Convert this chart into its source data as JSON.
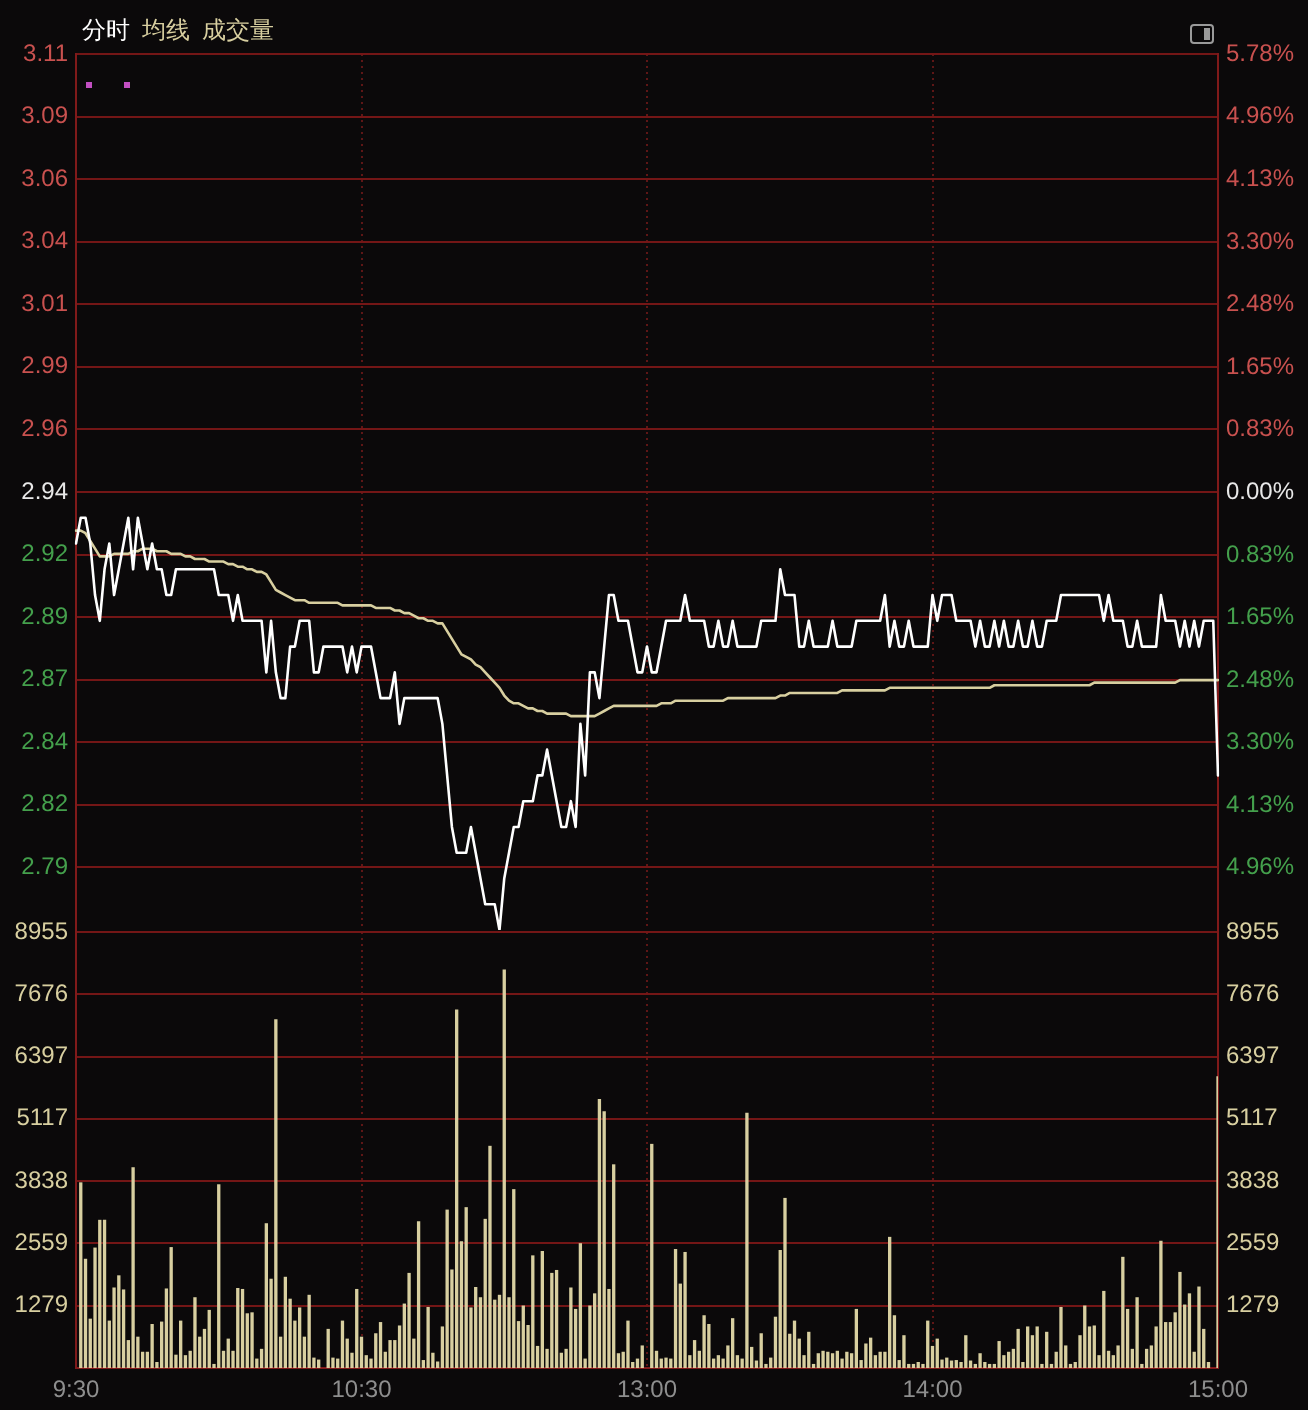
{
  "chart_data": [
    {
      "type": "line",
      "legend": "top left",
      "marker": "none",
      "grid": true,
      "categories": [
        null,
        null,
        null,
        null,
        null,
        null,
        null,
        null,
        null,
        null,
        null,
        null,
        null,
        null,
        null,
        null,
        null,
        null,
        null,
        null,
        null,
        null,
        null,
        null,
        null,
        null,
        null,
        null,
        null,
        null,
        null,
        null,
        null,
        null,
        null,
        null,
        null,
        null,
        null,
        null,
        null,
        null,
        null,
        null,
        null,
        null,
        null,
        null,
        null,
        null,
        null,
        null,
        null,
        null,
        null,
        null,
        null,
        null,
        null,
        null,
        null,
        null,
        null,
        null,
        null,
        null,
        null,
        null,
        null,
        null,
        null,
        null,
        null,
        null,
        null,
        null,
        null,
        null,
        null,
        null,
        null,
        null,
        null,
        null,
        null,
        null,
        null,
        null,
        null,
        null,
        null,
        null,
        null,
        null,
        null,
        null,
        null,
        null,
        null,
        null,
        null,
        null,
        null,
        null,
        null,
        null,
        null,
        null,
        null,
        null,
        null,
        null,
        null,
        null,
        null,
        null,
        null,
        null,
        null,
        null,
        null,
        null,
        null,
        null,
        null,
        null,
        null,
        null,
        null,
        null,
        null,
        null,
        null,
        null,
        null,
        null,
        null,
        null,
        null,
        null,
        null,
        null,
        null,
        null,
        null,
        null,
        null,
        null,
        null,
        null,
        null,
        null,
        null,
        null,
        null,
        null,
        null,
        null,
        null,
        null,
        null,
        null,
        null,
        null,
        null,
        null,
        null,
        null,
        null,
        null,
        null,
        null,
        null,
        null,
        null,
        null,
        null,
        null,
        null,
        null,
        null,
        null,
        null,
        null,
        null,
        null,
        null,
        null,
        null,
        null,
        null,
        null,
        null,
        null,
        null,
        null,
        null,
        null,
        null,
        null,
        null,
        null,
        null,
        null,
        null,
        null,
        null,
        null,
        null,
        null,
        null,
        null,
        null,
        null,
        null,
        null,
        null,
        null,
        null,
        null,
        null,
        null,
        null,
        null,
        null,
        null,
        null,
        null,
        null,
        null,
        null,
        null,
        null,
        null,
        null,
        null,
        null,
        null,
        null,
        null,
        null
      ],
      "ylim": [
        2.77,
        3.11
      ],
      "yticks": [
        3.11,
        {
          "value": 3.0857,
          "label": "3.09"
        },
        {
          "value": 3.0614,
          "label": "3.06"
        },
        {
          "value": 3.0371,
          "label": "3.04"
        },
        {
          "value": 3.0129,
          "label": "3.01"
        },
        {
          "value": 2.9886,
          "label": "2.99"
        },
        {
          "value": 2.9643,
          "label": "2.96"
        },
        2.94,
        {
          "value": 2.9157,
          "label": "2.92"
        },
        {
          "value": 2.8914,
          "label": "2.89"
        },
        {
          "value": 2.8671,
          "label": "2.87"
        },
        {
          "value": 2.8429,
          "label": "2.84"
        },
        {
          "value": 2.8186,
          "label": "2.82"
        },
        {
          "value": 2.7943,
          "label": "2.79"
        }
      ],
      "y2lim": [
        -5.78,
        5.78
      ],
      "y2ticks": [
        {
          "value": 5.78,
          "label": "5.78%"
        },
        {
          "value": 4.96,
          "label": "4.96%"
        },
        {
          "value": 4.13,
          "label": "4.13%"
        },
        {
          "value": 3.3,
          "label": "3.30%"
        },
        {
          "value": 2.48,
          "label": "2.48%"
        },
        {
          "value": 1.65,
          "label": "1.65%"
        },
        {
          "value": 0.83,
          "label": "0.83%"
        },
        {
          "value": 0,
          "label": "0.00%"
        },
        {
          "value": -0.83,
          "label": "0.83%"
        },
        {
          "value": -1.65,
          "label": "1.65%"
        },
        {
          "value": -2.48,
          "label": "2.48%"
        },
        {
          "value": -3.3,
          "label": "3.30%"
        },
        {
          "value": -4.13,
          "label": "4.13%"
        },
        {
          "value": -4.96,
          "label": "4.96%"
        }
      ],
      "series": [
        {
          "name": "分时",
          "color": "#ffffff",
          "values": [
            2.92,
            2.93,
            2.93,
            2.92,
            2.9,
            2.89,
            2.91,
            2.92,
            2.9,
            2.91,
            2.92,
            2.93,
            2.91,
            2.93,
            2.92,
            2.91,
            2.92,
            2.91,
            2.91,
            2.9,
            2.9,
            2.91,
            2.91,
            2.91,
            2.91,
            2.91,
            2.91,
            2.91,
            2.91,
            2.91,
            2.9,
            2.9,
            2.9,
            2.89,
            2.9,
            2.89,
            2.89,
            2.89,
            2.89,
            2.89,
            2.87,
            2.89,
            2.87,
            2.86,
            2.86,
            2.88,
            2.88,
            2.89,
            2.89,
            2.89,
            2.87,
            2.87,
            2.88,
            2.88,
            2.88,
            2.88,
            2.88,
            2.87,
            2.88,
            2.87,
            2.88,
            2.88,
            2.88,
            2.87,
            2.86,
            2.86,
            2.86,
            2.87,
            2.85,
            2.86,
            2.86,
            2.86,
            2.86,
            2.86,
            2.86,
            2.86,
            2.86,
            2.85,
            2.83,
            2.81,
            2.8,
            2.8,
            2.8,
            2.81,
            2.8,
            2.79,
            2.78,
            2.78,
            2.78,
            2.77,
            2.79,
            2.8,
            2.81,
            2.81,
            2.82,
            2.82,
            2.82,
            2.83,
            2.83,
            2.84,
            2.83,
            2.82,
            2.81,
            2.81,
            2.82,
            2.81,
            2.85,
            2.83,
            2.87,
            2.87,
            2.86,
            2.88,
            2.9,
            2.9,
            2.89,
            2.89,
            2.89,
            2.88,
            2.87,
            2.87,
            2.88,
            2.87,
            2.87,
            2.88,
            2.89,
            2.89,
            2.89,
            2.89,
            2.9,
            2.89,
            2.89,
            2.89,
            2.89,
            2.88,
            2.88,
            2.89,
            2.88,
            2.88,
            2.89,
            2.88,
            2.88,
            2.88,
            2.88,
            2.88,
            2.89,
            2.89,
            2.89,
            2.89,
            2.91,
            2.9,
            2.9,
            2.9,
            2.88,
            2.88,
            2.89,
            2.88,
            2.88,
            2.88,
            2.88,
            2.89,
            2.88,
            2.88,
            2.88,
            2.88,
            2.89,
            2.89,
            2.89,
            2.89,
            2.89,
            2.89,
            2.9,
            2.88,
            2.89,
            2.88,
            2.88,
            2.89,
            2.88,
            2.88,
            2.88,
            2.88,
            2.9,
            2.89,
            2.9,
            2.9,
            2.9,
            2.89,
            2.89,
            2.89,
            2.89,
            2.88,
            2.89,
            2.88,
            2.88,
            2.89,
            2.88,
            2.89,
            2.88,
            2.88,
            2.89,
            2.88,
            2.88,
            2.89,
            2.88,
            2.88,
            2.89,
            2.89,
            2.89,
            2.9,
            2.9,
            2.9,
            2.9,
            2.9,
            2.9,
            2.9,
            2.9,
            2.9,
            2.89,
            2.9,
            2.89,
            2.89,
            2.89,
            2.88,
            2.88,
            2.89,
            2.88,
            2.88,
            2.88,
            2.88,
            2.9,
            2.89,
            2.89,
            2.89,
            2.88,
            2.89,
            2.88,
            2.89,
            2.88,
            2.89,
            2.89,
            2.89,
            2.83
          ]
        },
        {
          "name": "均线",
          "color": "#d8cfa0",
          "values": [
            2.925,
            2.925,
            2.924,
            2.921,
            2.918,
            2.915,
            2.915,
            2.915,
            2.916,
            2.916,
            2.916,
            2.916,
            2.917,
            2.917,
            2.918,
            2.918,
            2.918,
            2.917,
            2.917,
            2.917,
            2.916,
            2.916,
            2.916,
            2.915,
            2.915,
            2.914,
            2.914,
            2.914,
            2.913,
            2.913,
            2.913,
            2.913,
            2.912,
            2.912,
            2.911,
            2.911,
            2.91,
            2.91,
            2.909,
            2.909,
            2.908,
            2.905,
            2.902,
            2.901,
            2.9,
            2.899,
            2.898,
            2.898,
            2.898,
            2.897,
            2.897,
            2.897,
            2.897,
            2.897,
            2.897,
            2.897,
            2.896,
            2.896,
            2.896,
            2.896,
            2.896,
            2.896,
            2.896,
            2.895,
            2.895,
            2.895,
            2.895,
            2.894,
            2.894,
            2.893,
            2.893,
            2.892,
            2.891,
            2.891,
            2.89,
            2.89,
            2.889,
            2.889,
            2.886,
            2.883,
            2.88,
            2.877,
            2.876,
            2.875,
            2.873,
            2.872,
            2.87,
            2.868,
            2.866,
            2.864,
            2.861,
            2.859,
            2.858,
            2.858,
            2.857,
            2.856,
            2.856,
            2.855,
            2.855,
            2.854,
            2.854,
            2.854,
            2.854,
            2.854,
            2.853,
            2.853,
            2.853,
            2.853,
            2.853,
            2.853,
            2.854,
            2.855,
            2.856,
            2.857,
            2.857,
            2.857,
            2.857,
            2.857,
            2.857,
            2.857,
            2.857,
            2.857,
            2.857,
            2.858,
            2.858,
            2.858,
            2.859,
            2.859,
            2.859,
            2.859,
            2.859,
            2.859,
            2.859,
            2.859,
            2.859,
            2.859,
            2.859,
            2.86,
            2.86,
            2.86,
            2.86,
            2.86,
            2.86,
            2.86,
            2.86,
            2.86,
            2.86,
            2.86,
            2.861,
            2.861,
            2.862,
            2.862,
            2.862,
            2.862,
            2.862,
            2.862,
            2.862,
            2.862,
            2.862,
            2.862,
            2.862,
            2.863,
            2.863,
            2.863,
            2.863,
            2.863,
            2.863,
            2.863,
            2.863,
            2.863,
            2.863,
            2.864,
            2.864,
            2.864,
            2.864,
            2.864,
            2.864,
            2.864,
            2.864,
            2.864,
            2.864,
            2.864,
            2.864,
            2.864,
            2.864,
            2.864,
            2.864,
            2.864,
            2.864,
            2.864,
            2.864,
            2.864,
            2.864,
            2.865,
            2.865,
            2.865,
            2.865,
            2.865,
            2.865,
            2.865,
            2.865,
            2.865,
            2.865,
            2.865,
            2.865,
            2.865,
            2.865,
            2.865,
            2.865,
            2.865,
            2.865,
            2.865,
            2.865,
            2.865,
            2.866,
            2.866,
            2.866,
            2.866,
            2.866,
            2.866,
            2.866,
            2.866,
            2.866,
            2.866,
            2.866,
            2.866,
            2.866,
            2.866,
            2.866,
            2.866,
            2.866,
            2.866,
            2.867,
            2.867,
            2.867,
            2.867,
            2.867,
            2.867,
            2.867,
            2.867,
            2.867
          ]
        }
      ]
    },
    {
      "type": "bar",
      "legend": "top left",
      "grid": true,
      "categories": [
        "9:30",
        null,
        null,
        null,
        null,
        null,
        null,
        null,
        null,
        null,
        null,
        null,
        null,
        null,
        null,
        null,
        null,
        null,
        null,
        null,
        null,
        null,
        null,
        null,
        null,
        null,
        null,
        null,
        null,
        null,
        null,
        null,
        null,
        null,
        null,
        null,
        null,
        null,
        null,
        null,
        null,
        null,
        null,
        null,
        null,
        null,
        null,
        null,
        null,
        null,
        null,
        null,
        null,
        null,
        null,
        null,
        null,
        null,
        null,
        null,
        "10:30",
        null,
        null,
        null,
        null,
        null,
        null,
        null,
        null,
        null,
        null,
        null,
        null,
        null,
        null,
        null,
        null,
        null,
        null,
        null,
        null,
        null,
        null,
        null,
        null,
        null,
        null,
        null,
        null,
        null,
        null,
        null,
        null,
        null,
        null,
        null,
        null,
        null,
        null,
        null,
        null,
        null,
        null,
        null,
        null,
        null,
        null,
        null,
        null,
        null,
        null,
        null,
        null,
        null,
        null,
        null,
        null,
        null,
        null,
        null,
        "13:00",
        null,
        null,
        null,
        null,
        null,
        null,
        null,
        null,
        null,
        null,
        null,
        null,
        null,
        null,
        null,
        null,
        null,
        null,
        null,
        null,
        null,
        null,
        null,
        null,
        null,
        null,
        null,
        null,
        null,
        null,
        null,
        null,
        null,
        null,
        null,
        null,
        null,
        null,
        null,
        null,
        null,
        null,
        null,
        null,
        null,
        null,
        null,
        null,
        null,
        null,
        null,
        null,
        null,
        null,
        null,
        null,
        null,
        null,
        null,
        "14:00",
        null,
        null,
        null,
        null,
        null,
        null,
        null,
        null,
        null,
        null,
        null,
        null,
        null,
        null,
        null,
        null,
        null,
        null,
        null,
        null,
        null,
        null,
        null,
        null,
        null,
        null,
        null,
        null,
        null,
        null,
        null,
        null,
        null,
        null,
        null,
        null,
        null,
        null,
        null,
        null,
        null,
        null,
        null,
        null,
        null,
        null,
        null,
        null,
        null,
        null,
        null,
        null,
        null,
        null,
        null,
        null,
        null,
        null,
        null,
        "15:00"
      ],
      "ylim": [
        0,
        8955
      ],
      "yticks": [
        1279,
        2559,
        3838,
        5117,
        6397,
        7676,
        8955
      ],
      "y2lim": [
        0,
        8955
      ],
      "y2ticks": [
        1279,
        2559,
        3838,
        5117,
        6397,
        7676,
        8955
      ],
      "series": [
        {
          "name": "成交量",
          "color": "#d8cfa0",
          "values": [
            null,
            3800,
            2230,
            1000,
            2460,
            3030,
            3030,
            960,
            1640,
            1890,
            1600,
            560,
            4110,
            630,
            320,
            320,
            890,
            110,
            940,
            1620,
            2470,
            260,
            960,
            250,
            340,
            1440,
            630,
            790,
            1180,
            70,
            3760,
            340,
            590,
            340,
            1630,
            1610,
            1110,
            1130,
            180,
            380,
            2960,
            1820,
            7150,
            630,
            1860,
            1410,
            960,
            1230,
            630,
            1490,
            200,
            160,
            null,
            790,
            200,
            180,
            960,
            590,
            300,
            1610,
            630,
            250,
            180,
            700,
            930,
            320,
            560,
            560,
            860,
            1310,
            1940,
            590,
            3000,
            150,
            1240,
            300,
            120,
            840,
            3240,
            2010,
            7350,
            2590,
            3290,
            1230,
            1650,
            1440,
            3050,
            4550,
            1390,
            1490,
            8170,
            1440,
            3660,
            950,
            1270,
            870,
            2300,
            440,
            2390,
            380,
            1940,
            2000,
            300,
            380,
            1640,
            1200,
            2550,
            180,
            1270,
            1520,
            5510,
            5260,
            1610,
            4170,
            290,
            320,
            960,
            110,
            180,
            450,
            null,
            4590,
            340,
            180,
            200,
            180,
            2430,
            1720,
            2370,
            250,
            560,
            340,
            1070,
            890,
            180,
            250,
            180,
            450,
            1010,
            250,
            180,
            5230,
            420,
            140,
            700,
            70,
            200,
            1040,
            2410,
            3480,
            690,
            960,
            590,
            250,
            730,
            70,
            290,
            340,
            320,
            290,
            340,
            180,
            320,
            290,
            1200,
            150,
            490,
            610,
            250,
            320,
            320,
            2680,
            1070,
            150,
            660,
            70,
            70,
            110,
            70,
            960,
            440,
            590,
            160,
            200,
            140,
            150,
            110,
            660,
            140,
            70,
            290,
            110,
            70,
            70,
            540,
            250,
            320,
            380,
            790,
            110,
            840,
            660,
            840,
            70,
            730,
            70,
            320,
            1240,
            450,
            70,
            110,
            660,
            1270,
            840,
            860,
            250,
            1570,
            340,
            250,
            450,
            2270,
            1200,
            380,
            1440,
            70,
            380,
            450,
            840,
            2600,
            930,
            930,
            1130,
            1960,
            1290,
            1520,
            320,
            1660,
            790,
            110,
            null,
            5980
          ]
        }
      ]
    }
  ]
}
